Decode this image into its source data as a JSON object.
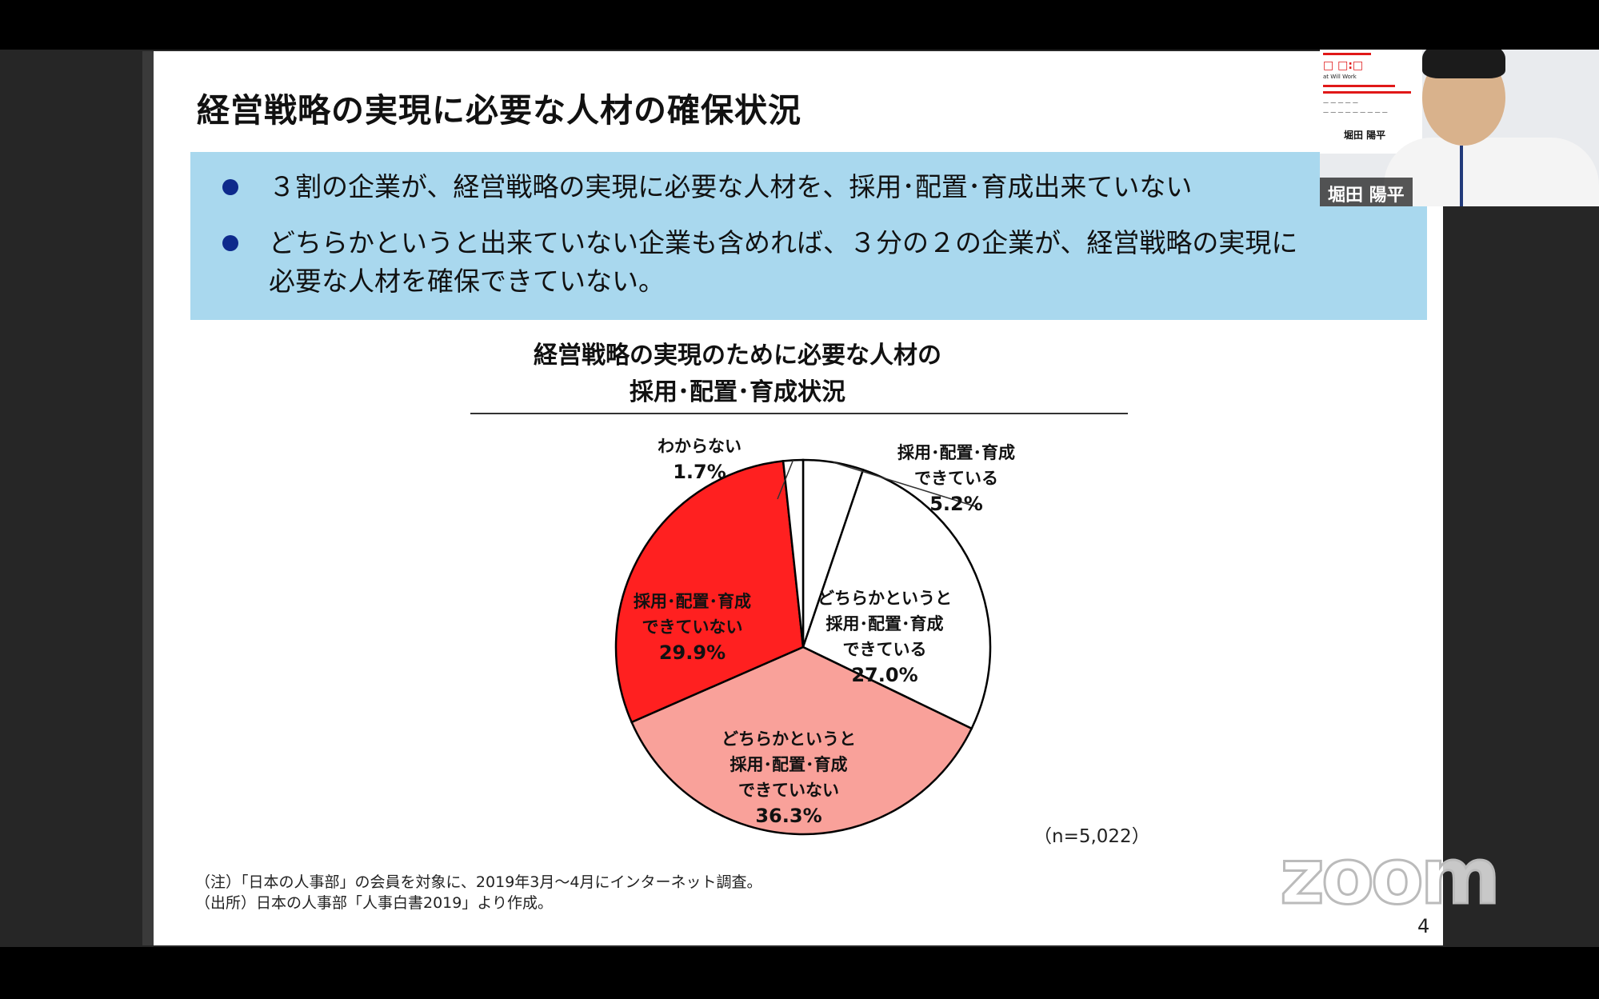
{
  "slide": {
    "title": "経営戦略の実現に必要な人材の確保状況",
    "bullets": [
      "３割の企業が、経営戦略の実現に必要な人材を、採用･配置･育成出来ていない",
      "どちらかというと出来ていない企業も含めれば、３分の２の企業が、経営戦略の実現に",
      "必要な人材を確保できていない。"
    ],
    "chart_title_line1": "経営戦略の実現のために必要な人材の",
    "chart_title_line2": "採用･配置･育成状況",
    "sample_size": "（n=5,022）",
    "note": "（注）「日本の人事部」の会員を対象に、2019年3月～4月にインターネット調査。",
    "source": "（出所）日本の人事部「人事白書2019」より作成。",
    "page_number": "4"
  },
  "chart_data": {
    "type": "pie",
    "title": "経営戦略の実現のために必要な人材の採用･配置･育成状況",
    "slices": [
      {
        "label": "採用･配置･育成できている",
        "line1": "採用･配置･育成",
        "line2": "できている",
        "line3": "",
        "value": 5.2,
        "pct_text": "5.2%",
        "color": "#ffffff"
      },
      {
        "label": "どちらかというと採用･配置･育成できている",
        "line1": "どちらかというと",
        "line2": "採用･配置･育成",
        "line3": "できている",
        "value": 27.0,
        "pct_text": "27.0%",
        "color": "#ffffff"
      },
      {
        "label": "どちらかというと採用･配置･育成できていない",
        "line1": "どちらかというと",
        "line2": "採用･配置･育成",
        "line3": "できていない",
        "value": 36.3,
        "pct_text": "36.3%",
        "color": "#f9a19a"
      },
      {
        "label": "採用･配置･育成できていない",
        "line1": "採用･配置･育成",
        "line2": "できていない",
        "line3": "",
        "value": 29.9,
        "pct_text": "29.9%",
        "color": "#ff2020"
      },
      {
        "label": "わからない",
        "line1": "わからない",
        "line2": "",
        "line3": "",
        "value": 1.7,
        "pct_text": "1.7%",
        "color": "#ffffff"
      }
    ],
    "n": 5022
  },
  "video": {
    "participant_name": "堀田 陽平",
    "banner_name": "堀田 陽平",
    "banner_brand": "at Will Work"
  },
  "watermark": "zoom",
  "colors": {
    "summary_bg": "#a9d8ee",
    "bullet": "#0e2a8c",
    "red": "#ff2020",
    "pink": "#f9a19a"
  }
}
